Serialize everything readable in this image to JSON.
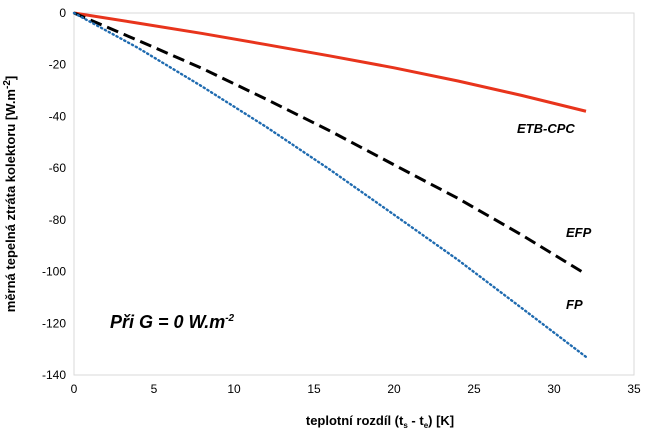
{
  "chart_data": {
    "type": "line",
    "xlabel": "teplotní rozdíl (ts - te) [K]",
    "xlabel_parts": {
      "pre": "teplotní rozdíl (t",
      "sub1": "s",
      "mid": " - t",
      "sub2": "e",
      "post": ") [K]"
    },
    "ylabel": "měrná tepelná ztráta kolektoru [W.m-2]",
    "ylabel_parts": {
      "pre": "měrná tepelná ztráta kolektoru [W.m",
      "sup": "-2",
      "post": "]"
    },
    "xlim": [
      0,
      35
    ],
    "ylim": [
      -140,
      0
    ],
    "xticks": [
      0,
      5,
      10,
      15,
      20,
      25,
      30,
      35
    ],
    "yticks": [
      0,
      -20,
      -40,
      -60,
      -80,
      -100,
      -120,
      -140
    ],
    "grid": false,
    "annotation": {
      "pre": "Při G = 0 W.m",
      "sup": "-2"
    },
    "series": [
      {
        "name": "ETB-CPC",
        "color": "#e8341c",
        "style": "solid",
        "x": [
          0,
          4,
          8,
          12,
          16,
          20,
          24,
          28,
          32
        ],
        "y": [
          0,
          -3.9,
          -7.9,
          -12.2,
          -16.6,
          -21.2,
          -26.3,
          -31.9,
          -38.0
        ]
      },
      {
        "name": "EFP",
        "color": "#000000",
        "style": "dashed",
        "x": [
          0,
          4,
          8,
          12,
          16,
          20,
          24,
          28,
          32
        ],
        "y": [
          0,
          -10.6,
          -21.4,
          -33.3,
          -45.6,
          -58.7,
          -71.7,
          -85.9,
          -101.0
        ]
      },
      {
        "name": "FP",
        "color": "#1f6bb0",
        "style": "dotted",
        "x": [
          0,
          4,
          8,
          12,
          16,
          20,
          24,
          28,
          32
        ],
        "y": [
          0,
          -13.5,
          -28.4,
          -44.0,
          -60.6,
          -78.0,
          -95.5,
          -114.2,
          -133.0
        ]
      }
    ]
  }
}
